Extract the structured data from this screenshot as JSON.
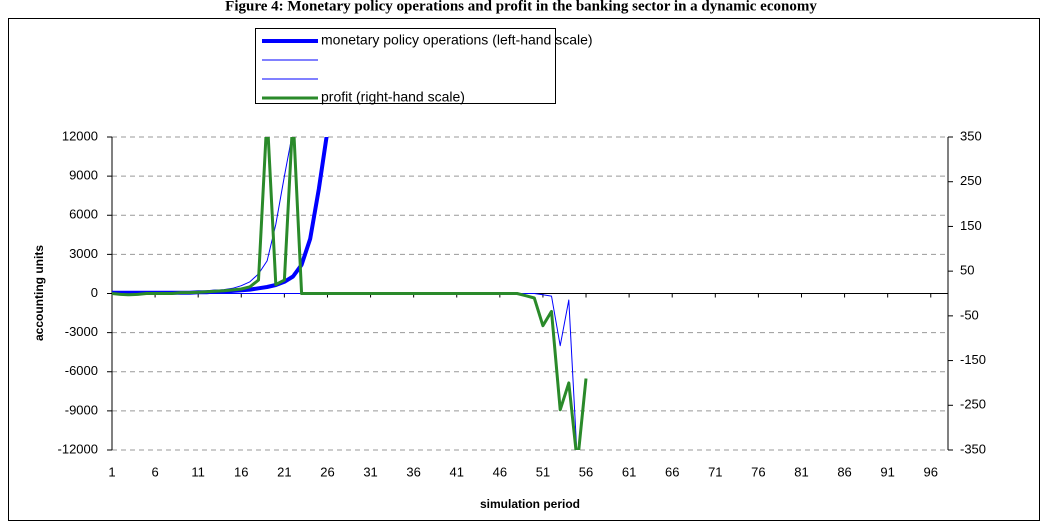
{
  "chart_data": {
    "type": "line",
    "title": "Figure 4: Monetary policy operations and profit in the banking sector in a dynamic economy",
    "x_label": "simulation period",
    "y_label": "accounting units",
    "x": [
      1,
      2,
      3,
      4,
      5,
      6,
      7,
      8,
      9,
      10,
      11,
      12,
      13,
      14,
      15,
      16,
      17,
      18,
      19,
      20,
      21,
      22,
      23,
      24,
      25,
      26,
      27,
      28,
      29,
      30,
      31,
      32,
      33,
      34,
      35,
      36,
      37,
      38,
      39,
      40,
      41,
      42,
      43,
      44,
      45,
      46,
      47,
      48,
      49,
      50,
      51,
      52,
      53,
      54,
      55,
      56,
      57,
      58,
      59,
      60,
      61,
      62,
      63,
      64,
      65,
      66,
      67,
      68,
      69,
      70,
      71,
      72,
      73,
      74,
      75,
      76,
      77,
      78,
      79,
      80,
      81,
      82,
      83,
      84,
      85,
      86,
      87,
      88,
      89,
      90,
      91,
      92,
      93,
      94,
      95,
      96,
      97,
      98
    ],
    "xlim": [
      1,
      98
    ],
    "xticks": [
      1,
      6,
      11,
      16,
      21,
      26,
      31,
      36,
      41,
      46,
      51,
      56,
      61,
      66,
      71,
      76,
      81,
      86,
      91,
      96
    ],
    "ylim": [
      -12000,
      12000
    ],
    "yticks": [
      -12000,
      -9000,
      -6000,
      -3000,
      0,
      3000,
      6000,
      9000,
      12000
    ],
    "y2lim": [
      -350,
      350
    ],
    "y2ticks": [
      -350,
      -250,
      -150,
      -50,
      50,
      150,
      250,
      350
    ],
    "grid": true,
    "series": [
      {
        "name": "monetary policy operations (left-hand scale)",
        "color": "#0000ff",
        "width": 4,
        "values": [
          50,
          50,
          50,
          50,
          50,
          50,
          50,
          50,
          50,
          50,
          100,
          100,
          150,
          150,
          200,
          250,
          300,
          400,
          500,
          650,
          900,
          1300,
          2200,
          4200,
          8000,
          12500,
          null,
          null,
          null,
          null,
          null,
          null,
          null,
          null,
          null,
          null,
          null,
          null,
          null,
          null,
          null,
          null,
          null,
          null,
          null,
          null,
          null,
          null,
          null,
          null,
          null,
          null,
          null,
          null,
          null,
          null,
          null,
          null,
          null,
          null,
          null,
          null,
          null,
          null,
          null,
          null,
          null,
          null,
          null,
          null,
          null,
          null,
          null,
          null,
          null,
          null,
          null,
          null,
          null,
          null,
          null,
          null,
          null,
          null,
          null,
          null,
          null,
          null,
          null,
          null,
          null,
          null,
          null,
          null,
          null,
          null,
          null,
          null
        ]
      },
      {
        "color": "#0000ff",
        "width": 1,
        "values": [
          100,
          100,
          100,
          100,
          100,
          100,
          100,
          100,
          100,
          100,
          150,
          200,
          250,
          300,
          400,
          600,
          900,
          1500,
          2500,
          5300,
          9000,
          12500,
          null,
          null,
          null,
          null,
          null,
          null,
          null,
          null,
          null,
          null,
          null,
          null,
          null,
          null,
          null,
          null,
          null,
          null,
          null,
          null,
          null,
          null,
          null,
          null,
          null,
          null,
          null,
          null,
          null,
          null,
          null,
          null,
          null,
          null,
          null,
          null,
          null,
          null,
          null,
          null,
          null,
          null,
          null,
          null,
          null,
          null,
          null,
          null,
          null,
          null,
          null,
          null,
          null,
          null,
          null,
          null,
          null,
          null,
          null,
          null,
          null,
          null,
          null,
          null,
          null,
          null,
          null,
          null,
          null,
          null,
          null,
          null,
          null,
          null,
          null,
          null
        ]
      },
      {
        "color": "#0000ff",
        "width": 1,
        "values": [
          0,
          0,
          0,
          0,
          0,
          0,
          0,
          0,
          0,
          0,
          0,
          0,
          0,
          0,
          0,
          0,
          0,
          0,
          0,
          0,
          0,
          0,
          0,
          0,
          0,
          0,
          0,
          0,
          0,
          0,
          0,
          0,
          0,
          0,
          0,
          0,
          0,
          0,
          0,
          0,
          0,
          0,
          0,
          0,
          0,
          0,
          0,
          0,
          0,
          0,
          -100,
          -200,
          -4000,
          -500,
          -13000,
          null,
          null,
          null,
          null,
          null,
          null,
          null,
          null,
          null,
          null,
          null,
          null,
          null,
          null,
          null,
          null,
          null,
          null,
          null,
          null,
          null,
          null,
          null,
          null,
          null,
          null,
          null,
          null,
          null,
          null,
          null,
          null,
          null,
          null,
          null,
          null,
          null,
          null,
          null,
          null,
          null,
          null,
          null
        ]
      },
      {
        "name": "profit (right-hand scale)",
        "color": "#2a8a2a",
        "width": 3,
        "axis": "y2",
        "values": [
          0,
          -2,
          -3,
          -2,
          0,
          0,
          0,
          0,
          2,
          2,
          3,
          4,
          5,
          6,
          8,
          10,
          15,
          30,
          400,
          20,
          30,
          400,
          0,
          0,
          0,
          0,
          0,
          0,
          0,
          0,
          0,
          0,
          0,
          0,
          0,
          0,
          0,
          0,
          0,
          0,
          0,
          0,
          0,
          0,
          0,
          0,
          0,
          0,
          -5,
          -10,
          -72,
          -40,
          -260,
          -200,
          -380,
          -190,
          null,
          null,
          null,
          null,
          null,
          null,
          null,
          null,
          null,
          null,
          null,
          null,
          null,
          null,
          null,
          null,
          null,
          null,
          null,
          null,
          null,
          null,
          null,
          null,
          null,
          null,
          null,
          null,
          null,
          null,
          null,
          null,
          null,
          null,
          null,
          null,
          null,
          null,
          null,
          null,
          null,
          null
        ]
      }
    ]
  }
}
